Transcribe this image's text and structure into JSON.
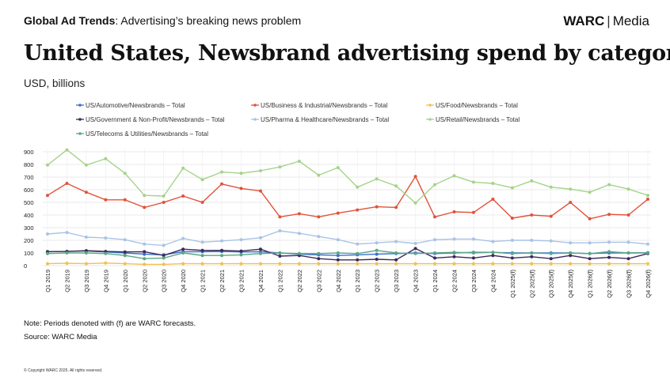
{
  "header": {
    "tag_bold": "Global Ad Trends",
    "tag_rest": ": Advertising’s breaking news problem"
  },
  "brand": {
    "name": "WARC",
    "sep": "|",
    "product": "Media"
  },
  "title": "United States, Newsbrand advertising spend by category",
  "subtitle": "USD, billions",
  "note": "Note: Periods denoted with (f) are WARC forecasts.",
  "source": "Source: WARC Media",
  "copyright": "© Copyright WARC 2025. All rights reserved.",
  "chart_data": {
    "type": "line",
    "title": "United States, Newsbrand advertising spend by category",
    "ylabel": "USD, billions",
    "ylim": [
      0,
      900
    ],
    "yticks": [
      0,
      100,
      200,
      300,
      400,
      500,
      600,
      700,
      800,
      900
    ],
    "grid": true,
    "legend_position": "top",
    "categories": [
      "Q1 2019",
      "Q2 2019",
      "Q3 2019",
      "Q4 2019",
      "Q1 2020",
      "Q2 2020",
      "Q3 2020",
      "Q4 2020",
      "Q1 2021",
      "Q2 2021",
      "Q3 2021",
      "Q4 2021",
      "Q1 2022",
      "Q2 2022",
      "Q3 2022",
      "Q4 2022",
      "Q1 2023",
      "Q2 2023",
      "Q3 2023",
      "Q4 2023",
      "Q1 2024",
      "Q2 2024",
      "Q3 2024",
      "Q4 2024",
      "Q1 2025(f)",
      "Q2 2025(f)",
      "Q3 2025(f)",
      "Q4 2025(f)",
      "Q1 2026(f)",
      "Q2 2026(f)",
      "Q3 2026(f)",
      "Q4 2026(f)"
    ],
    "series": [
      {
        "name": "US/Automotive/Newsbrands – Total",
        "color": "#3b6fd6",
        "values": [
          110,
          112,
          115,
          108,
          100,
          90,
          85,
          110,
          110,
          112,
          108,
          110,
          100,
          90,
          85,
          80,
          85,
          90,
          95,
          100,
          95,
          100,
          105,
          105,
          100,
          100,
          100,
          100,
          95,
          100,
          100,
          102
        ]
      },
      {
        "name": "US/Business & Industrial/Newsbrands – Total",
        "color": "#e0533b",
        "values": [
          555,
          650,
          580,
          520,
          520,
          460,
          500,
          550,
          500,
          645,
          610,
          590,
          385,
          410,
          385,
          415,
          440,
          465,
          460,
          705,
          385,
          425,
          420,
          525,
          375,
          400,
          390,
          500,
          370,
          405,
          400,
          525
        ]
      },
      {
        "name": "US/Food/Newsbrands – Total",
        "color": "#efc150",
        "values": [
          15,
          18,
          15,
          20,
          15,
          10,
          10,
          15,
          15,
          15,
          15,
          15,
          15,
          15,
          15,
          15,
          15,
          15,
          15,
          15,
          15,
          15,
          15,
          15,
          15,
          15,
          15,
          15,
          15,
          15,
          15,
          15
        ]
      },
      {
        "name": "US/Government & Non-Profit/Newsbrands – Total",
        "color": "#3d2a5a",
        "values": [
          110,
          112,
          118,
          112,
          108,
          110,
          80,
          130,
          120,
          120,
          115,
          130,
          75,
          80,
          55,
          45,
          45,
          50,
          45,
          135,
          60,
          70,
          60,
          80,
          60,
          70,
          55,
          80,
          55,
          65,
          55,
          95
        ]
      },
      {
        "name": "US/Pharma & Healthcare/Newsbrands – Total",
        "color": "#a9c3e6",
        "values": [
          250,
          262,
          225,
          218,
          205,
          170,
          160,
          215,
          185,
          195,
          205,
          220,
          275,
          255,
          230,
          205,
          170,
          180,
          190,
          175,
          205,
          210,
          210,
          190,
          200,
          200,
          195,
          180,
          180,
          185,
          185,
          170
        ]
      },
      {
        "name": "US/Retail/Newsbrands – Total",
        "color": "#a5d38a",
        "values": [
          795,
          915,
          795,
          845,
          730,
          555,
          550,
          770,
          680,
          740,
          730,
          750,
          780,
          825,
          715,
          775,
          620,
          685,
          630,
          495,
          640,
          710,
          660,
          650,
          615,
          670,
          620,
          605,
          580,
          640,
          605,
          555
        ]
      },
      {
        "name": "US/Telecoms & Utilities/Newsbrands – Total",
        "color": "#5aa882",
        "values": [
          95,
          100,
          100,
          95,
          80,
          55,
          60,
          100,
          80,
          80,
          85,
          95,
          100,
          95,
          95,
          100,
          95,
          120,
          100,
          95,
          100,
          105,
          100,
          105,
          95,
          100,
          95,
          100,
          95,
          110,
          100,
          100
        ]
      }
    ]
  }
}
